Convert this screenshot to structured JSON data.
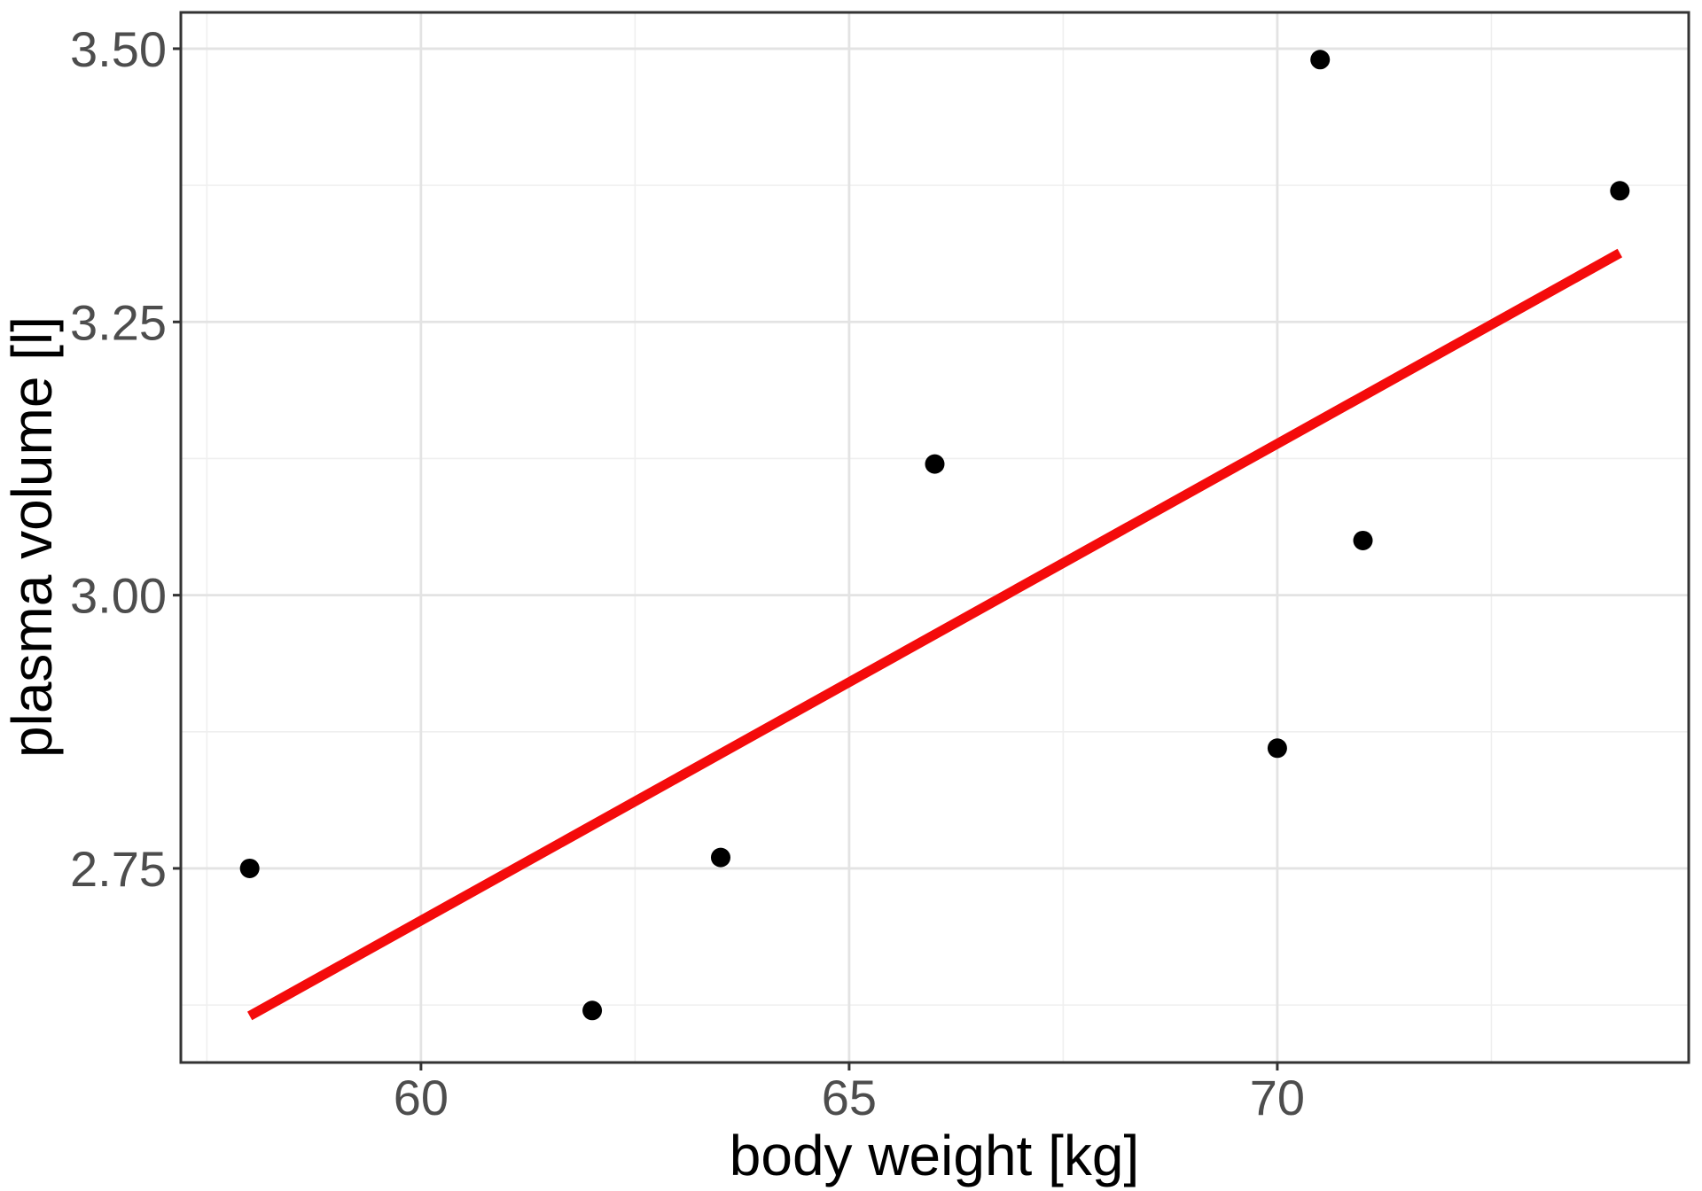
{
  "chart_data": {
    "type": "scatter",
    "title": "",
    "xlabel": "body weight [kg]",
    "ylabel": "plasma volume [l]",
    "points": [
      {
        "x": 58.0,
        "y": 2.75
      },
      {
        "x": 62.0,
        "y": 2.62
      },
      {
        "x": 63.5,
        "y": 2.76
      },
      {
        "x": 66.0,
        "y": 3.12
      },
      {
        "x": 70.0,
        "y": 2.86
      },
      {
        "x": 70.5,
        "y": 3.49
      },
      {
        "x": 71.0,
        "y": 3.05
      },
      {
        "x": 74.0,
        "y": 3.37
      }
    ],
    "regression_line": {
      "x_start": 58.0,
      "y_start": 2.615,
      "x_end": 74.0,
      "y_end": 3.313
    },
    "x_axis": {
      "ticks": [
        {
          "value": 60,
          "label": "60"
        },
        {
          "value": 65,
          "label": "65"
        },
        {
          "value": 70,
          "label": "70"
        }
      ],
      "minor_ticks": [
        57.5,
        62.5,
        67.5,
        72.5
      ],
      "range": [
        57.196,
        74.804
      ]
    },
    "y_axis": {
      "ticks": [
        {
          "value": 2.75,
          "label": "2.75"
        },
        {
          "value": 3.0,
          "label": "3.00"
        },
        {
          "value": 3.25,
          "label": "3.25"
        },
        {
          "value": 3.5,
          "label": "3.50"
        }
      ],
      "minor_ticks": [
        2.625,
        2.875,
        3.125,
        3.375
      ],
      "range": [
        2.5724,
        3.5332
      ]
    },
    "grid": "major-and-minor",
    "legend": "none",
    "colors": {
      "point": "#000000",
      "regression_line": "#F40B0B",
      "grid_major": "#E3E3E3",
      "grid_minor": "#EFEFEF",
      "tick_label": "#4D4D4D",
      "axis_title": "#000000",
      "tick_mark": "#333333",
      "panel_border": "#333333",
      "background": "#FFFFFF"
    }
  }
}
